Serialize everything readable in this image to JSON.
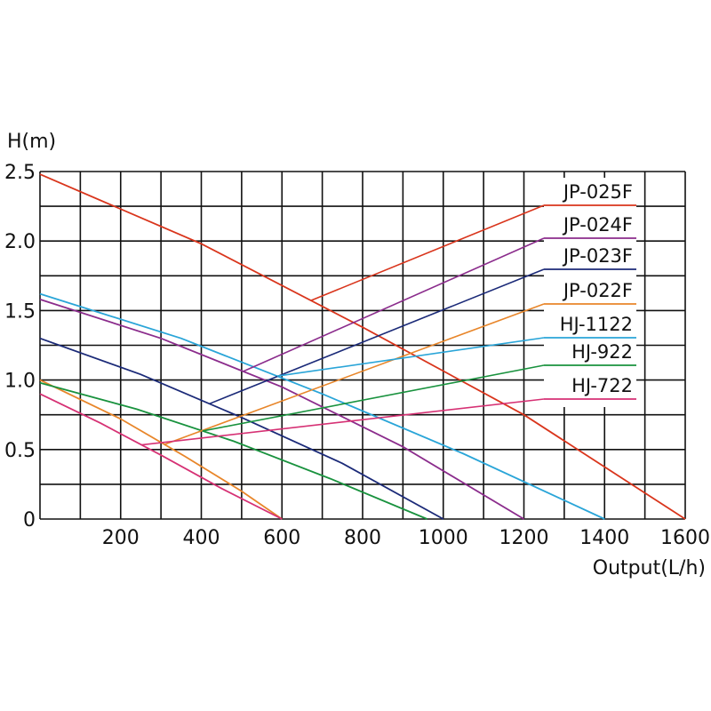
{
  "chart_data": {
    "type": "line",
    "ylabel": "H(m)",
    "xlabel": "Output(L/h)",
    "xlim": [
      0,
      1600
    ],
    "ylim": [
      0,
      2.5
    ],
    "x_ticks": [
      200,
      400,
      600,
      800,
      1000,
      1200,
      1400,
      1600
    ],
    "x_tick_labels": [
      "200",
      "400",
      "600",
      "800",
      "1000",
      "1200",
      "1400",
      "1600"
    ],
    "y_ticks": [
      0,
      0.5,
      1.0,
      1.5,
      2.0,
      2.5
    ],
    "y_tick_labels": [
      "0",
      "0.5",
      "1.0",
      "1.5",
      "2.0",
      "2.5"
    ],
    "grid": true,
    "series": [
      {
        "name": "JP-025F",
        "color": "#d9351c",
        "x": [
          0,
          400,
          800,
          1200,
          1600
        ],
        "y": [
          2.48,
          1.98,
          1.38,
          0.75,
          0
        ]
      },
      {
        "name": "JP-024F",
        "color": "#8b2c8c",
        "x": [
          0,
          300,
          600,
          900,
          1200
        ],
        "y": [
          1.58,
          1.3,
          0.95,
          0.52,
          0
        ]
      },
      {
        "name": "JP-023F",
        "color": "#1b2a78",
        "x": [
          0,
          250,
          500,
          750,
          1000
        ],
        "y": [
          1.3,
          1.04,
          0.73,
          0.4,
          0
        ]
      },
      {
        "name": "JP-022F",
        "color": "#e8862a",
        "x": [
          0,
          200,
          360,
          500,
          600
        ],
        "y": [
          1.0,
          0.72,
          0.45,
          0.2,
          0
        ]
      },
      {
        "name": "HJ-1122",
        "color": "#2aa5d8",
        "x": [
          0,
          350,
          700,
          1050,
          1400
        ],
        "y": [
          1.62,
          1.3,
          0.9,
          0.47,
          0
        ]
      },
      {
        "name": "HJ-922",
        "color": "#19923e",
        "x": [
          0,
          240,
          480,
          720,
          960
        ],
        "y": [
          0.98,
          0.79,
          0.56,
          0.29,
          0
        ]
      },
      {
        "name": "HJ-722",
        "color": "#d63174",
        "x": [
          0,
          150,
          300,
          450,
          600
        ],
        "y": [
          0.9,
          0.69,
          0.46,
          0.22,
          0
        ]
      }
    ]
  }
}
